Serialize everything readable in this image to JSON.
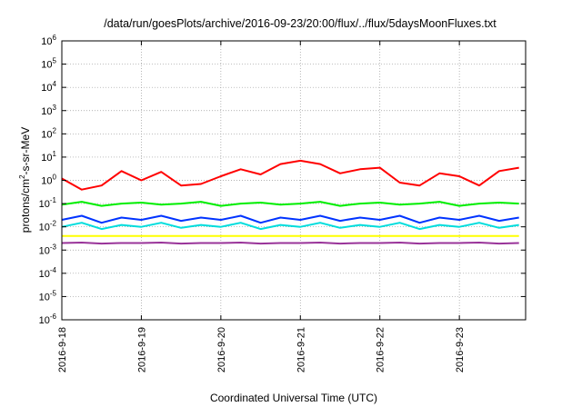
{
  "chart_data": {
    "type": "line",
    "title": "/data/run/goesPlots/archive/2016-09-23/20:00/flux/../flux/5daysMoonFluxes.txt",
    "xlabel": "Coordinated Universal Time (UTC)",
    "ylabel": "protons/cm2-s-sr-MeV",
    "y_scale": "log",
    "ylim": [
      1e-06,
      1000000.0
    ],
    "xlim": [
      "2016-09-18 00:00",
      "2016-09-23 20:00"
    ],
    "grid": true,
    "x_ticks": [
      "2016-9-18",
      "2016-9-19",
      "2016-9-20",
      "2016-9-21",
      "2016-9-22",
      "2016-9-23"
    ],
    "y_tick_exponents": [
      -6,
      -5,
      -4,
      -3,
      -2,
      -1,
      0,
      1,
      2,
      3,
      4,
      5,
      6
    ],
    "x": [
      "2016-09-18 00:00",
      "2016-09-18 06:00",
      "2016-09-18 12:00",
      "2016-09-18 18:00",
      "2016-09-19 00:00",
      "2016-09-19 06:00",
      "2016-09-19 12:00",
      "2016-09-19 18:00",
      "2016-09-20 00:00",
      "2016-09-20 06:00",
      "2016-09-20 12:00",
      "2016-09-20 18:00",
      "2016-09-21 00:00",
      "2016-09-21 06:00",
      "2016-09-21 12:00",
      "2016-09-21 18:00",
      "2016-09-22 00:00",
      "2016-09-22 06:00",
      "2016-09-22 12:00",
      "2016-09-22 18:00",
      "2016-09-23 00:00",
      "2016-09-23 06:00",
      "2016-09-23 12:00",
      "2016-09-23 18:00"
    ],
    "series": [
      {
        "color": "#ff0000",
        "values": [
          1.2,
          0.4,
          0.6,
          2.5,
          1.0,
          2.3,
          0.6,
          0.7,
          1.5,
          3.0,
          1.8,
          5.0,
          7.0,
          5.0,
          2.0,
          3.0,
          3.5,
          0.8,
          0.6,
          2.0,
          1.5,
          0.6,
          2.5,
          3.5
        ]
      },
      {
        "color": "#00ee00",
        "values": [
          0.09,
          0.12,
          0.08,
          0.1,
          0.11,
          0.09,
          0.1,
          0.12,
          0.08,
          0.1,
          0.11,
          0.09,
          0.1,
          0.12,
          0.08,
          0.1,
          0.11,
          0.09,
          0.1,
          0.12,
          0.08,
          0.1,
          0.11,
          0.1
        ]
      },
      {
        "color": "#0033ff",
        "values": [
          0.02,
          0.03,
          0.015,
          0.025,
          0.02,
          0.03,
          0.018,
          0.025,
          0.02,
          0.03,
          0.015,
          0.025,
          0.02,
          0.03,
          0.018,
          0.025,
          0.02,
          0.03,
          0.015,
          0.025,
          0.02,
          0.03,
          0.018,
          0.025
        ]
      },
      {
        "color": "#00dddd",
        "values": [
          0.01,
          0.015,
          0.008,
          0.012,
          0.01,
          0.015,
          0.009,
          0.012,
          0.01,
          0.015,
          0.008,
          0.012,
          0.01,
          0.015,
          0.009,
          0.012,
          0.01,
          0.015,
          0.008,
          0.012,
          0.01,
          0.015,
          0.009,
          0.012
        ]
      },
      {
        "color": "#ffff00",
        "values": [
          0.004,
          0.004,
          0.004,
          0.004,
          0.004,
          0.004,
          0.004,
          0.004,
          0.004,
          0.004,
          0.004,
          0.004,
          0.004,
          0.004,
          0.004,
          0.004,
          0.004,
          0.004,
          0.004,
          0.004,
          0.004,
          0.004,
          0.004,
          0.004
        ]
      },
      {
        "color": "#993399",
        "values": [
          0.002,
          0.0021,
          0.0019,
          0.002,
          0.002,
          0.0021,
          0.0019,
          0.002,
          0.002,
          0.0021,
          0.0019,
          0.002,
          0.002,
          0.0021,
          0.0019,
          0.002,
          0.002,
          0.0021,
          0.0019,
          0.002,
          0.002,
          0.0021,
          0.0019,
          0.002
        ]
      }
    ]
  }
}
